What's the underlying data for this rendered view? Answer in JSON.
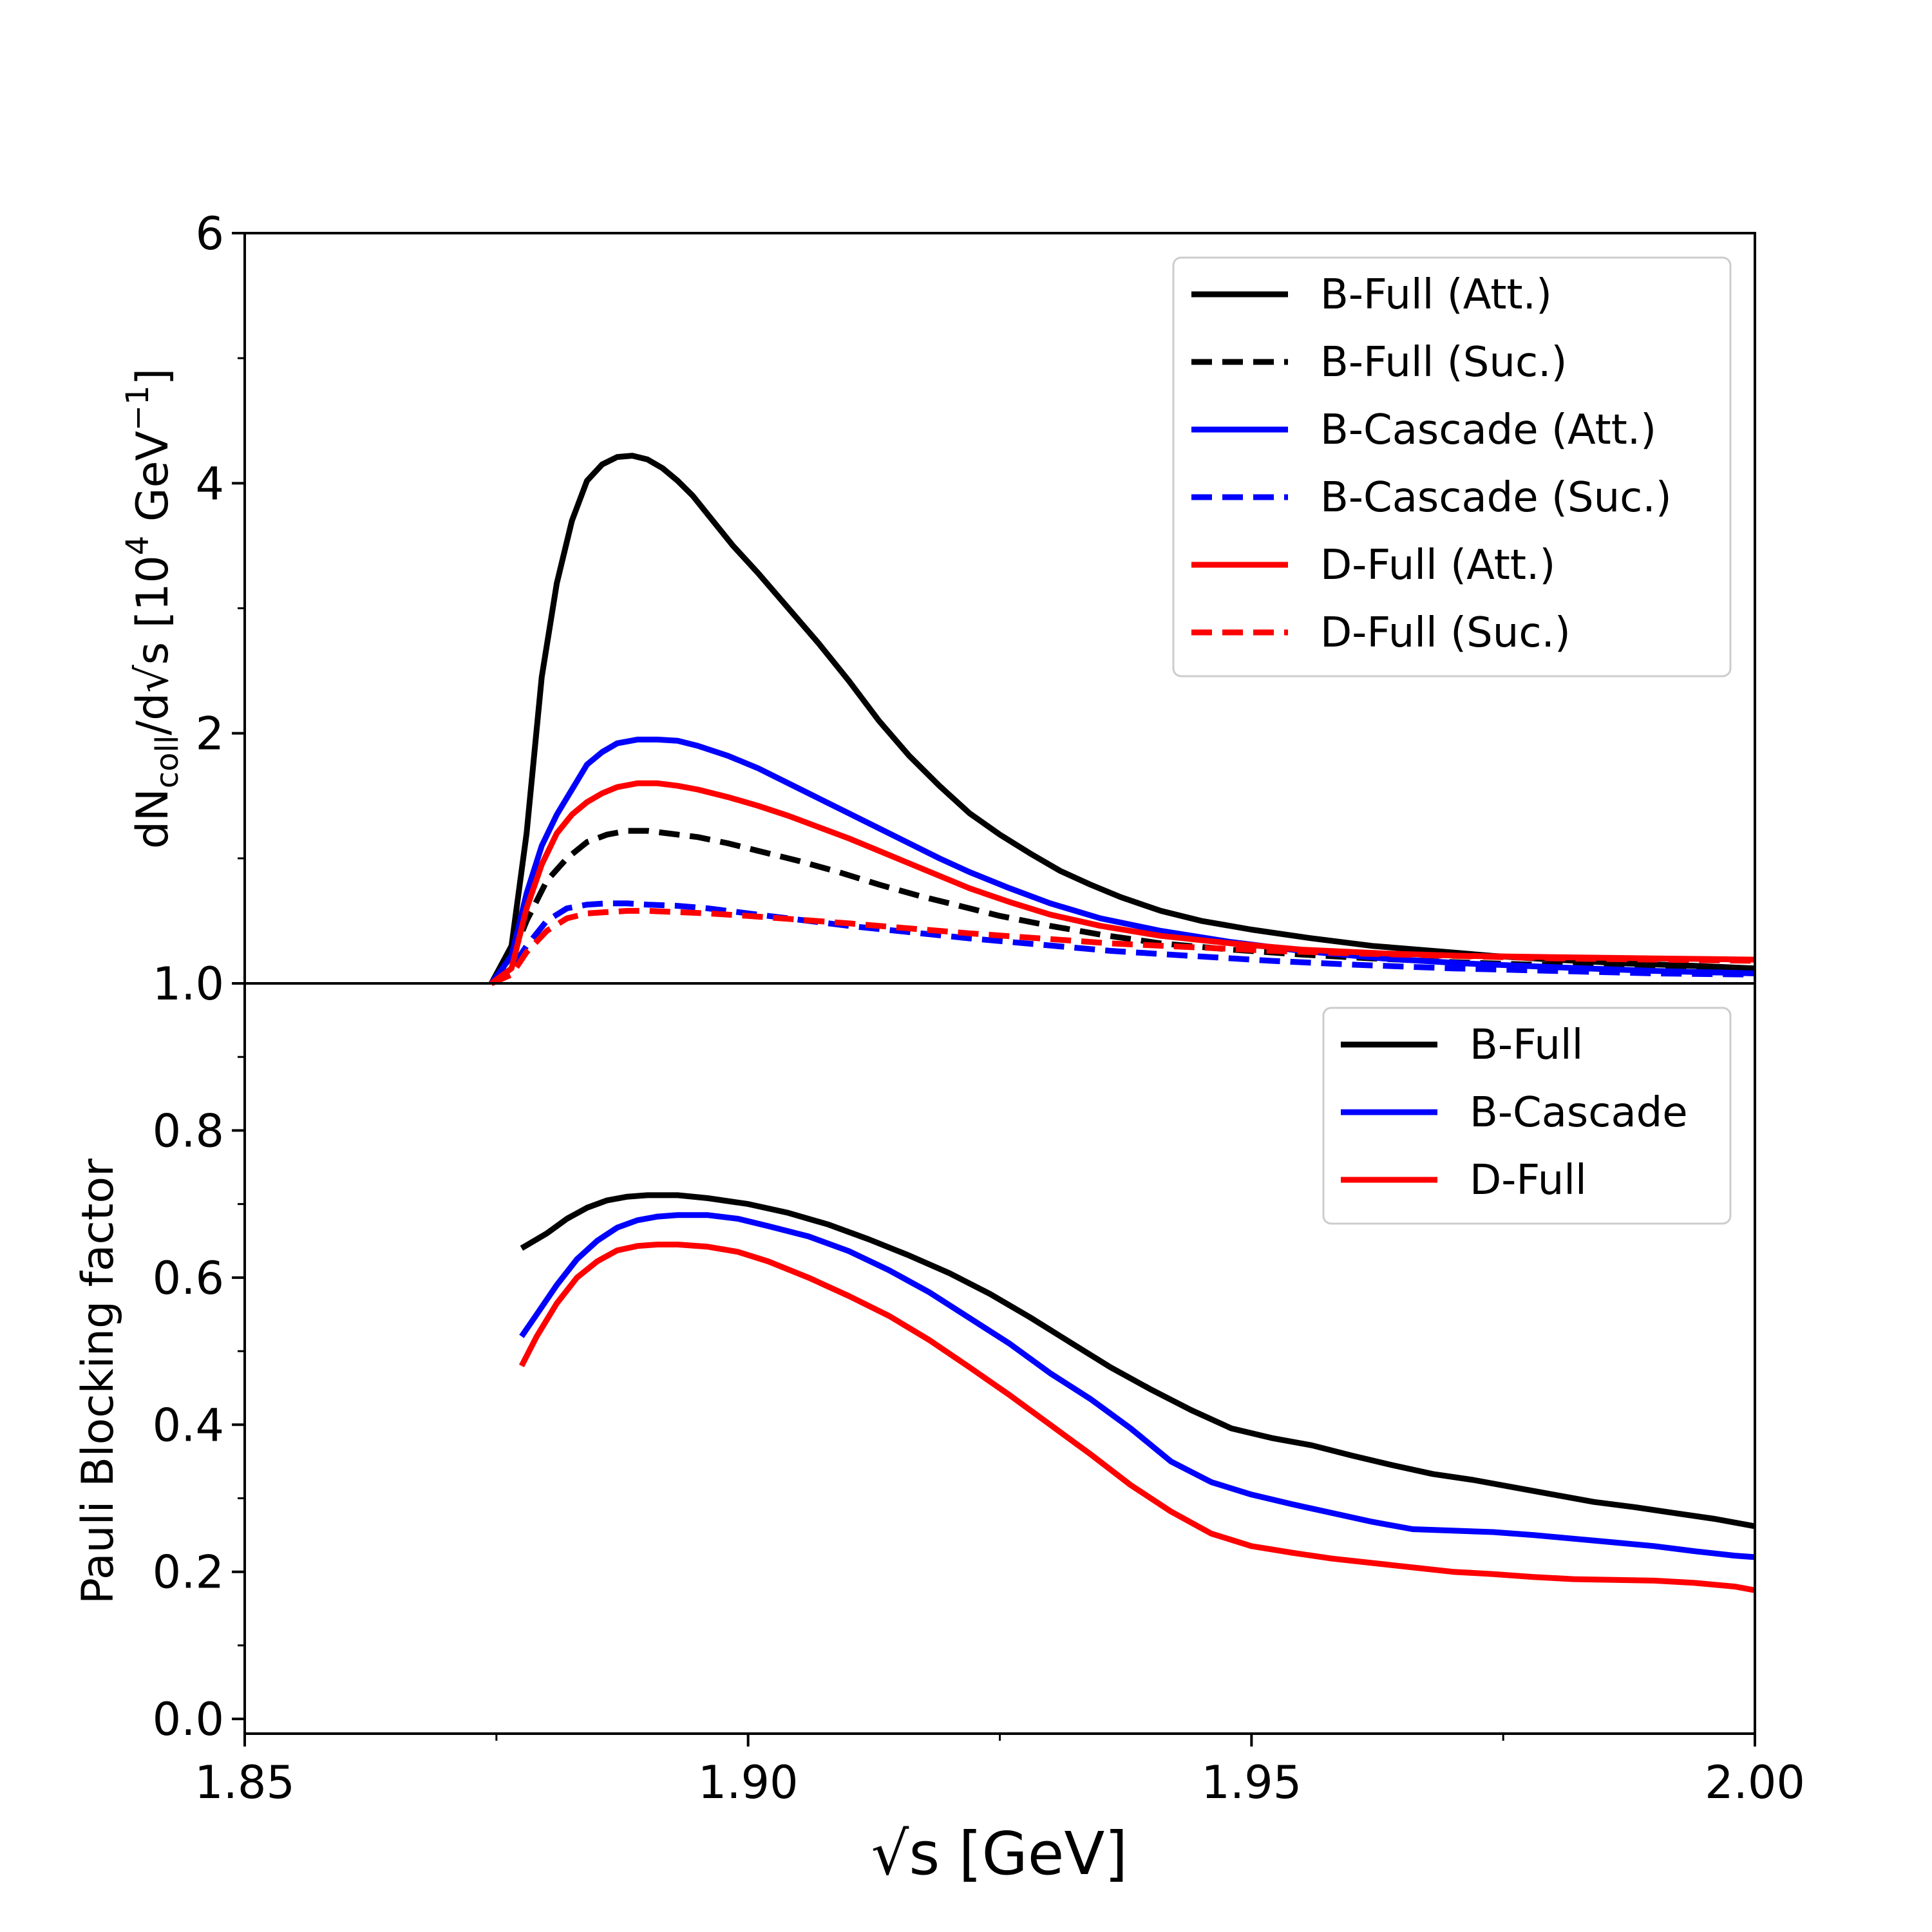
{
  "chart_data": [
    {
      "type": "line",
      "panel": "top",
      "ylabel_parts": {
        "main": "dN",
        "sub": "coll",
        "mid": "/d√s [10",
        "sup": "4",
        "tail": " GeV",
        "sup2": "−1",
        "end": "]"
      },
      "xlim": [
        1.85,
        2.0
      ],
      "ylim": [
        0,
        6
      ],
      "yticks": [
        {
          "value": 2,
          "label": "2"
        },
        {
          "value": 4,
          "label": "4"
        },
        {
          "value": 6,
          "label": "6"
        }
      ],
      "series": [
        {
          "name": "B-Full (Att.)",
          "color": "#000000",
          "dash": false,
          "x": [
            1.8745,
            1.8765,
            1.878,
            1.8795,
            1.881,
            1.8825,
            1.884,
            1.8855,
            1.887,
            1.8885,
            1.89,
            1.8915,
            1.893,
            1.8945,
            1.896,
            1.8985,
            1.901,
            1.904,
            1.907,
            1.91,
            1.913,
            1.916,
            1.919,
            1.922,
            1.925,
            1.928,
            1.931,
            1.934,
            1.937,
            1.941,
            1.945,
            1.95,
            1.956,
            1.962,
            1.968,
            1.974,
            1.98,
            1.987,
            1.994,
            2.0
          ],
          "values": [
            0,
            0.3,
            1.2,
            2.45,
            3.2,
            3.7,
            4.02,
            4.15,
            4.21,
            4.22,
            4.19,
            4.12,
            4.02,
            3.9,
            3.75,
            3.5,
            3.28,
            3.0,
            2.72,
            2.42,
            2.1,
            1.82,
            1.58,
            1.36,
            1.19,
            1.04,
            0.9,
            0.79,
            0.69,
            0.58,
            0.5,
            0.43,
            0.36,
            0.3,
            0.26,
            0.22,
            0.19,
            0.16,
            0.14,
            0.12
          ]
        },
        {
          "name": "B-Full (Suc.)",
          "color": "#000000",
          "dash": true,
          "x": [
            1.8745,
            1.8765,
            1.878,
            1.88,
            1.882,
            1.884,
            1.886,
            1.888,
            1.89,
            1.892,
            1.895,
            1.898,
            1.901,
            1.905,
            1.909,
            1.913,
            1.917,
            1.921,
            1.925,
            1.93,
            1.935,
            1.941,
            1.948,
            1.955,
            1.962,
            1.97,
            1.978,
            1.986,
            1.994,
            2.0
          ],
          "values": [
            0,
            0.2,
            0.5,
            0.82,
            1.0,
            1.13,
            1.19,
            1.22,
            1.22,
            1.2,
            1.17,
            1.12,
            1.06,
            0.98,
            0.89,
            0.79,
            0.7,
            0.62,
            0.54,
            0.46,
            0.39,
            0.32,
            0.27,
            0.23,
            0.2,
            0.17,
            0.15,
            0.13,
            0.12,
            0.11
          ]
        },
        {
          "name": "B-Cascade (Att.)",
          "color": "#0000ff",
          "dash": false,
          "x": [
            1.8745,
            1.8765,
            1.878,
            1.8795,
            1.881,
            1.8825,
            1.884,
            1.8855,
            1.887,
            1.889,
            1.891,
            1.893,
            1.895,
            1.898,
            1.901,
            1.904,
            1.907,
            1.91,
            1.913,
            1.916,
            1.919,
            1.922,
            1.926,
            1.93,
            1.935,
            1.941,
            1.948,
            1.955,
            1.963,
            1.971,
            1.98,
            1.99,
            2.0
          ],
          "values": [
            0,
            0.22,
            0.72,
            1.1,
            1.35,
            1.55,
            1.75,
            1.85,
            1.92,
            1.95,
            1.95,
            1.94,
            1.9,
            1.82,
            1.72,
            1.6,
            1.48,
            1.36,
            1.24,
            1.12,
            1.0,
            0.89,
            0.76,
            0.64,
            0.52,
            0.42,
            0.33,
            0.26,
            0.2,
            0.16,
            0.13,
            0.1,
            0.08
          ]
        },
        {
          "name": "B-Cascade (Suc.)",
          "color": "#0000ff",
          "dash": true,
          "x": [
            1.8745,
            1.8765,
            1.878,
            1.88,
            1.882,
            1.884,
            1.886,
            1.888,
            1.89,
            1.893,
            1.896,
            1.9,
            1.905,
            1.91,
            1.916,
            1.922,
            1.929,
            1.936,
            1.944,
            1.952,
            1.96,
            1.97,
            1.98,
            1.99,
            2.0
          ],
          "values": [
            0,
            0.12,
            0.3,
            0.5,
            0.6,
            0.63,
            0.64,
            0.64,
            0.63,
            0.62,
            0.6,
            0.56,
            0.51,
            0.46,
            0.41,
            0.36,
            0.31,
            0.26,
            0.22,
            0.18,
            0.15,
            0.12,
            0.1,
            0.08,
            0.07
          ]
        },
        {
          "name": "D-Full (Att.)",
          "color": "#ff0000",
          "dash": false,
          "x": [
            1.8745,
            1.8765,
            1.878,
            1.8795,
            1.881,
            1.8825,
            1.884,
            1.8855,
            1.887,
            1.889,
            1.891,
            1.893,
            1.895,
            1.898,
            1.901,
            1.904,
            1.907,
            1.91,
            1.913,
            1.916,
            1.919,
            1.922,
            1.926,
            1.93,
            1.935,
            1.941,
            1.948,
            1.955,
            1.963,
            1.971,
            1.98,
            1.99,
            2.0
          ],
          "values": [
            0,
            0.12,
            0.6,
            0.95,
            1.2,
            1.35,
            1.45,
            1.52,
            1.57,
            1.6,
            1.6,
            1.58,
            1.55,
            1.49,
            1.42,
            1.34,
            1.25,
            1.16,
            1.06,
            0.96,
            0.86,
            0.76,
            0.65,
            0.55,
            0.46,
            0.38,
            0.32,
            0.27,
            0.24,
            0.22,
            0.21,
            0.2,
            0.19
          ]
        },
        {
          "name": "D-Full (Suc.)",
          "color": "#ff0000",
          "dash": true,
          "x": [
            1.8745,
            1.8765,
            1.878,
            1.88,
            1.882,
            1.884,
            1.886,
            1.888,
            1.89,
            1.893,
            1.896,
            1.9,
            1.905,
            1.91,
            1.916,
            1.922,
            1.929,
            1.936,
            1.944,
            1.952,
            1.96,
            1.97,
            1.98,
            1.99,
            2.0
          ],
          "values": [
            0,
            0.07,
            0.25,
            0.42,
            0.52,
            0.56,
            0.57,
            0.58,
            0.58,
            0.57,
            0.56,
            0.54,
            0.51,
            0.48,
            0.44,
            0.4,
            0.36,
            0.32,
            0.29,
            0.26,
            0.24,
            0.22,
            0.2,
            0.19,
            0.18
          ]
        }
      ]
    },
    {
      "type": "line",
      "panel": "bottom",
      "xlabel": "√s [GeV]",
      "ylabel": "Pauli Blocking factor",
      "xlim": [
        1.85,
        2.0
      ],
      "ylim": [
        -0.02,
        1.0
      ],
      "xticks": [
        {
          "value": 1.85,
          "label": "1.85"
        },
        {
          "value": 1.9,
          "label": "1.90"
        },
        {
          "value": 1.95,
          "label": "1.95"
        },
        {
          "value": 2.0,
          "label": "2.00"
        }
      ],
      "yticks": [
        {
          "value": 0.0,
          "label": "0.0"
        },
        {
          "value": 0.2,
          "label": "0.2"
        },
        {
          "value": 0.4,
          "label": "0.4"
        },
        {
          "value": 0.6,
          "label": "0.6"
        },
        {
          "value": 0.8,
          "label": "0.8"
        },
        {
          "value": 1.0,
          "label": "1.0"
        }
      ],
      "series": [
        {
          "name": "B-Full",
          "color": "#000000",
          "x": [
            1.8775,
            1.88,
            1.882,
            1.884,
            1.886,
            1.888,
            1.89,
            1.893,
            1.896,
            1.9,
            1.904,
            1.908,
            1.912,
            1.916,
            1.92,
            1.924,
            1.928,
            1.932,
            1.936,
            1.94,
            1.944,
            1.948,
            1.952,
            1.956,
            1.96,
            1.964,
            1.968,
            1.972,
            1.976,
            1.98,
            1.984,
            1.988,
            1.992,
            1.996,
            2.0
          ],
          "values": [
            0.64,
            0.66,
            0.68,
            0.695,
            0.705,
            0.71,
            0.712,
            0.712,
            0.708,
            0.7,
            0.688,
            0.672,
            0.652,
            0.63,
            0.606,
            0.578,
            0.546,
            0.512,
            0.478,
            0.448,
            0.42,
            0.395,
            0.382,
            0.372,
            0.358,
            0.345,
            0.333,
            0.325,
            0.315,
            0.305,
            0.295,
            0.288,
            0.28,
            0.272,
            0.262
          ]
        },
        {
          "name": "B-Cascade",
          "color": "#0000ff",
          "x": [
            1.8775,
            1.879,
            1.881,
            1.883,
            1.885,
            1.887,
            1.889,
            1.891,
            1.893,
            1.896,
            1.899,
            1.902,
            1.906,
            1.91,
            1.914,
            1.918,
            1.922,
            1.926,
            1.93,
            1.934,
            1.938,
            1.942,
            1.946,
            1.95,
            1.954,
            1.958,
            1.962,
            1.966,
            1.97,
            1.974,
            1.978,
            1.982,
            1.986,
            1.99,
            1.994,
            1.998,
            2.0
          ],
          "values": [
            0.52,
            0.55,
            0.59,
            0.625,
            0.65,
            0.668,
            0.678,
            0.683,
            0.685,
            0.685,
            0.68,
            0.67,
            0.656,
            0.636,
            0.61,
            0.58,
            0.545,
            0.51,
            0.47,
            0.435,
            0.395,
            0.35,
            0.322,
            0.305,
            0.292,
            0.28,
            0.268,
            0.258,
            0.256,
            0.254,
            0.25,
            0.245,
            0.24,
            0.235,
            0.228,
            0.222,
            0.22
          ]
        },
        {
          "name": "D-Full",
          "color": "#ff0000",
          "x": [
            1.8775,
            1.879,
            1.881,
            1.883,
            1.885,
            1.887,
            1.889,
            1.891,
            1.893,
            1.896,
            1.899,
            1.902,
            1.906,
            1.91,
            1.914,
            1.918,
            1.922,
            1.926,
            1.93,
            1.934,
            1.938,
            1.942,
            1.946,
            1.95,
            1.954,
            1.958,
            1.962,
            1.966,
            1.97,
            1.974,
            1.978,
            1.982,
            1.986,
            1.99,
            1.994,
            1.998,
            2.0
          ],
          "values": [
            0.48,
            0.52,
            0.565,
            0.6,
            0.622,
            0.637,
            0.643,
            0.645,
            0.645,
            0.642,
            0.635,
            0.622,
            0.6,
            0.575,
            0.548,
            0.515,
            0.478,
            0.44,
            0.4,
            0.36,
            0.318,
            0.282,
            0.252,
            0.235,
            0.226,
            0.218,
            0.212,
            0.206,
            0.2,
            0.197,
            0.193,
            0.19,
            0.189,
            0.188,
            0.185,
            0.18,
            0.175
          ]
        }
      ]
    }
  ]
}
